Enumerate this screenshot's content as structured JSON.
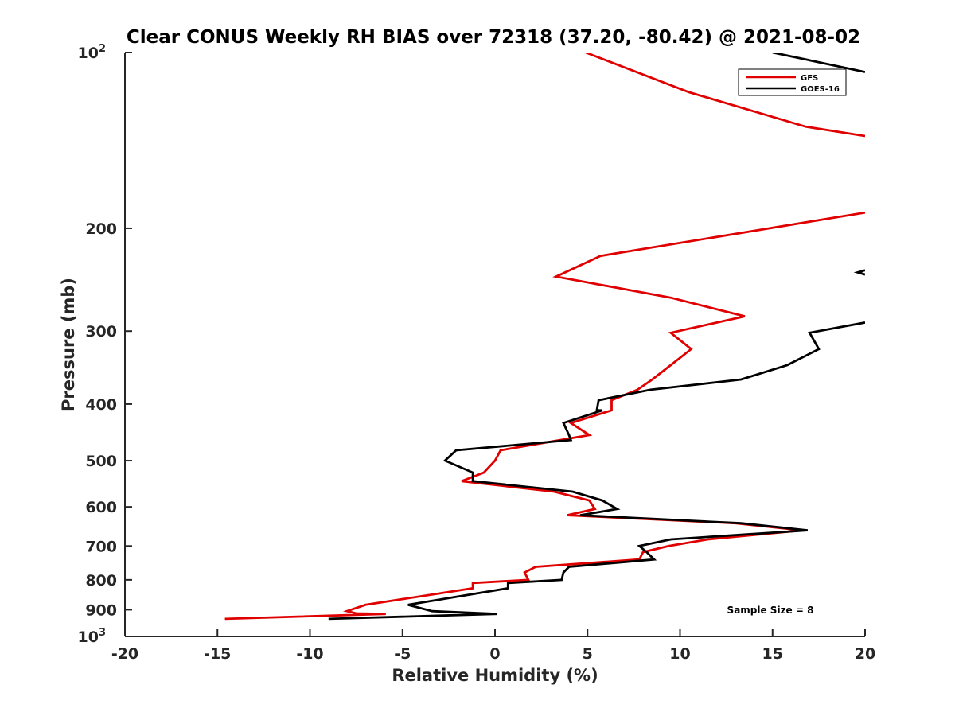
{
  "chart_data": {
    "type": "line",
    "title": "Clear CONUS Weekly RH BIAS over 72318 (37.20, -80.42) @ 2021-08-02",
    "xlabel": "Relative Humidity (%)",
    "ylabel": "Pressure (mb)",
    "xlim": [
      -20,
      20
    ],
    "ylim": [
      100,
      1000
    ],
    "y_scale": "log",
    "y_reversed": true,
    "x_ticks": [
      "-20",
      "-15",
      "-10",
      "-5",
      "0",
      "5",
      "10",
      "15",
      "20"
    ],
    "y_ticks": [
      {
        "base": "10",
        "exp": "2"
      },
      {
        "label": "200"
      },
      {
        "label": "300"
      },
      {
        "label": "400"
      },
      {
        "label": "500"
      },
      {
        "label": "600"
      },
      {
        "label": "700"
      },
      {
        "label": "800"
      },
      {
        "label": "900"
      },
      {
        "base": "10",
        "exp": "3"
      }
    ],
    "grid": false,
    "legend_position": "top-right",
    "annotation": "Sample Size = 8",
    "series": [
      {
        "name": "GFS",
        "color": "#e00000",
        "points": [
          [
            4.9,
            100
          ],
          [
            10.5,
            117
          ],
          [
            16.8,
            134
          ],
          [
            20,
            139
          ],
          [
            null,
            null
          ],
          [
            20,
            188
          ],
          [
            5.7,
            223
          ],
          [
            3.3,
            242
          ],
          [
            9.5,
            263
          ],
          [
            13.5,
            283
          ],
          [
            9.5,
            302
          ],
          [
            10.6,
            322
          ],
          [
            9.5,
            343
          ],
          [
            8.5,
            363
          ],
          [
            7.7,
            378
          ],
          [
            6.3,
            394
          ],
          [
            6.3,
            410
          ],
          [
            4.1,
            431
          ],
          [
            5.1,
            452
          ],
          [
            0.3,
            480
          ],
          [
            0.0,
            500
          ],
          [
            -0.6,
            524
          ],
          [
            -1.8,
            542
          ],
          [
            3.2,
            565
          ],
          [
            5.1,
            585
          ],
          [
            5.4,
            605
          ],
          [
            3.9,
            620
          ],
          [
            13.0,
            640
          ],
          [
            16.6,
            658
          ],
          [
            11.5,
            682
          ],
          [
            9.4,
            700
          ],
          [
            8.0,
            717
          ],
          [
            7.8,
            738
          ],
          [
            2.2,
            760
          ],
          [
            1.6,
            777
          ],
          [
            1.8,
            800
          ],
          [
            -1.2,
            810
          ],
          [
            -1.2,
            827
          ],
          [
            -7.0,
            883
          ],
          [
            -8.0,
            905
          ],
          [
            -7.5,
            913
          ],
          [
            -5.9,
            915
          ],
          [
            -14.6,
            933
          ]
        ]
      },
      {
        "name": "GOES-16",
        "color": "#000000",
        "points": [
          [
            15.0,
            100
          ],
          [
            20,
            108
          ],
          [
            null,
            null
          ],
          [
            20,
            236
          ],
          [
            19.6,
            238
          ],
          [
            20,
            240
          ],
          [
            null,
            null
          ],
          [
            20,
            290
          ],
          [
            17.0,
            302
          ],
          [
            17.5,
            322
          ],
          [
            15.8,
            343
          ],
          [
            13.3,
            363
          ],
          [
            8.4,
            378
          ],
          [
            5.6,
            394
          ],
          [
            5.5,
            410
          ],
          [
            5.8,
            410
          ],
          [
            3.7,
            431
          ],
          [
            4.0,
            452
          ],
          [
            4.1,
            461
          ],
          [
            -2.1,
            480
          ],
          [
            -2.7,
            500
          ],
          [
            -1.2,
            524
          ],
          [
            -1.2,
            542
          ],
          [
            4.2,
            565
          ],
          [
            5.8,
            585
          ],
          [
            6.6,
            605
          ],
          [
            4.6,
            620
          ],
          [
            13.3,
            640
          ],
          [
            16.9,
            658
          ],
          [
            9.5,
            682
          ],
          [
            7.8,
            700
          ],
          [
            8.2,
            717
          ],
          [
            8.6,
            738
          ],
          [
            4.0,
            760
          ],
          [
            3.7,
            777
          ],
          [
            3.6,
            800
          ],
          [
            0.7,
            810
          ],
          [
            0.7,
            827
          ],
          [
            -4.7,
            883
          ],
          [
            -3.4,
            905
          ],
          [
            0.1,
            915
          ],
          [
            -9.0,
            933
          ]
        ]
      }
    ]
  }
}
